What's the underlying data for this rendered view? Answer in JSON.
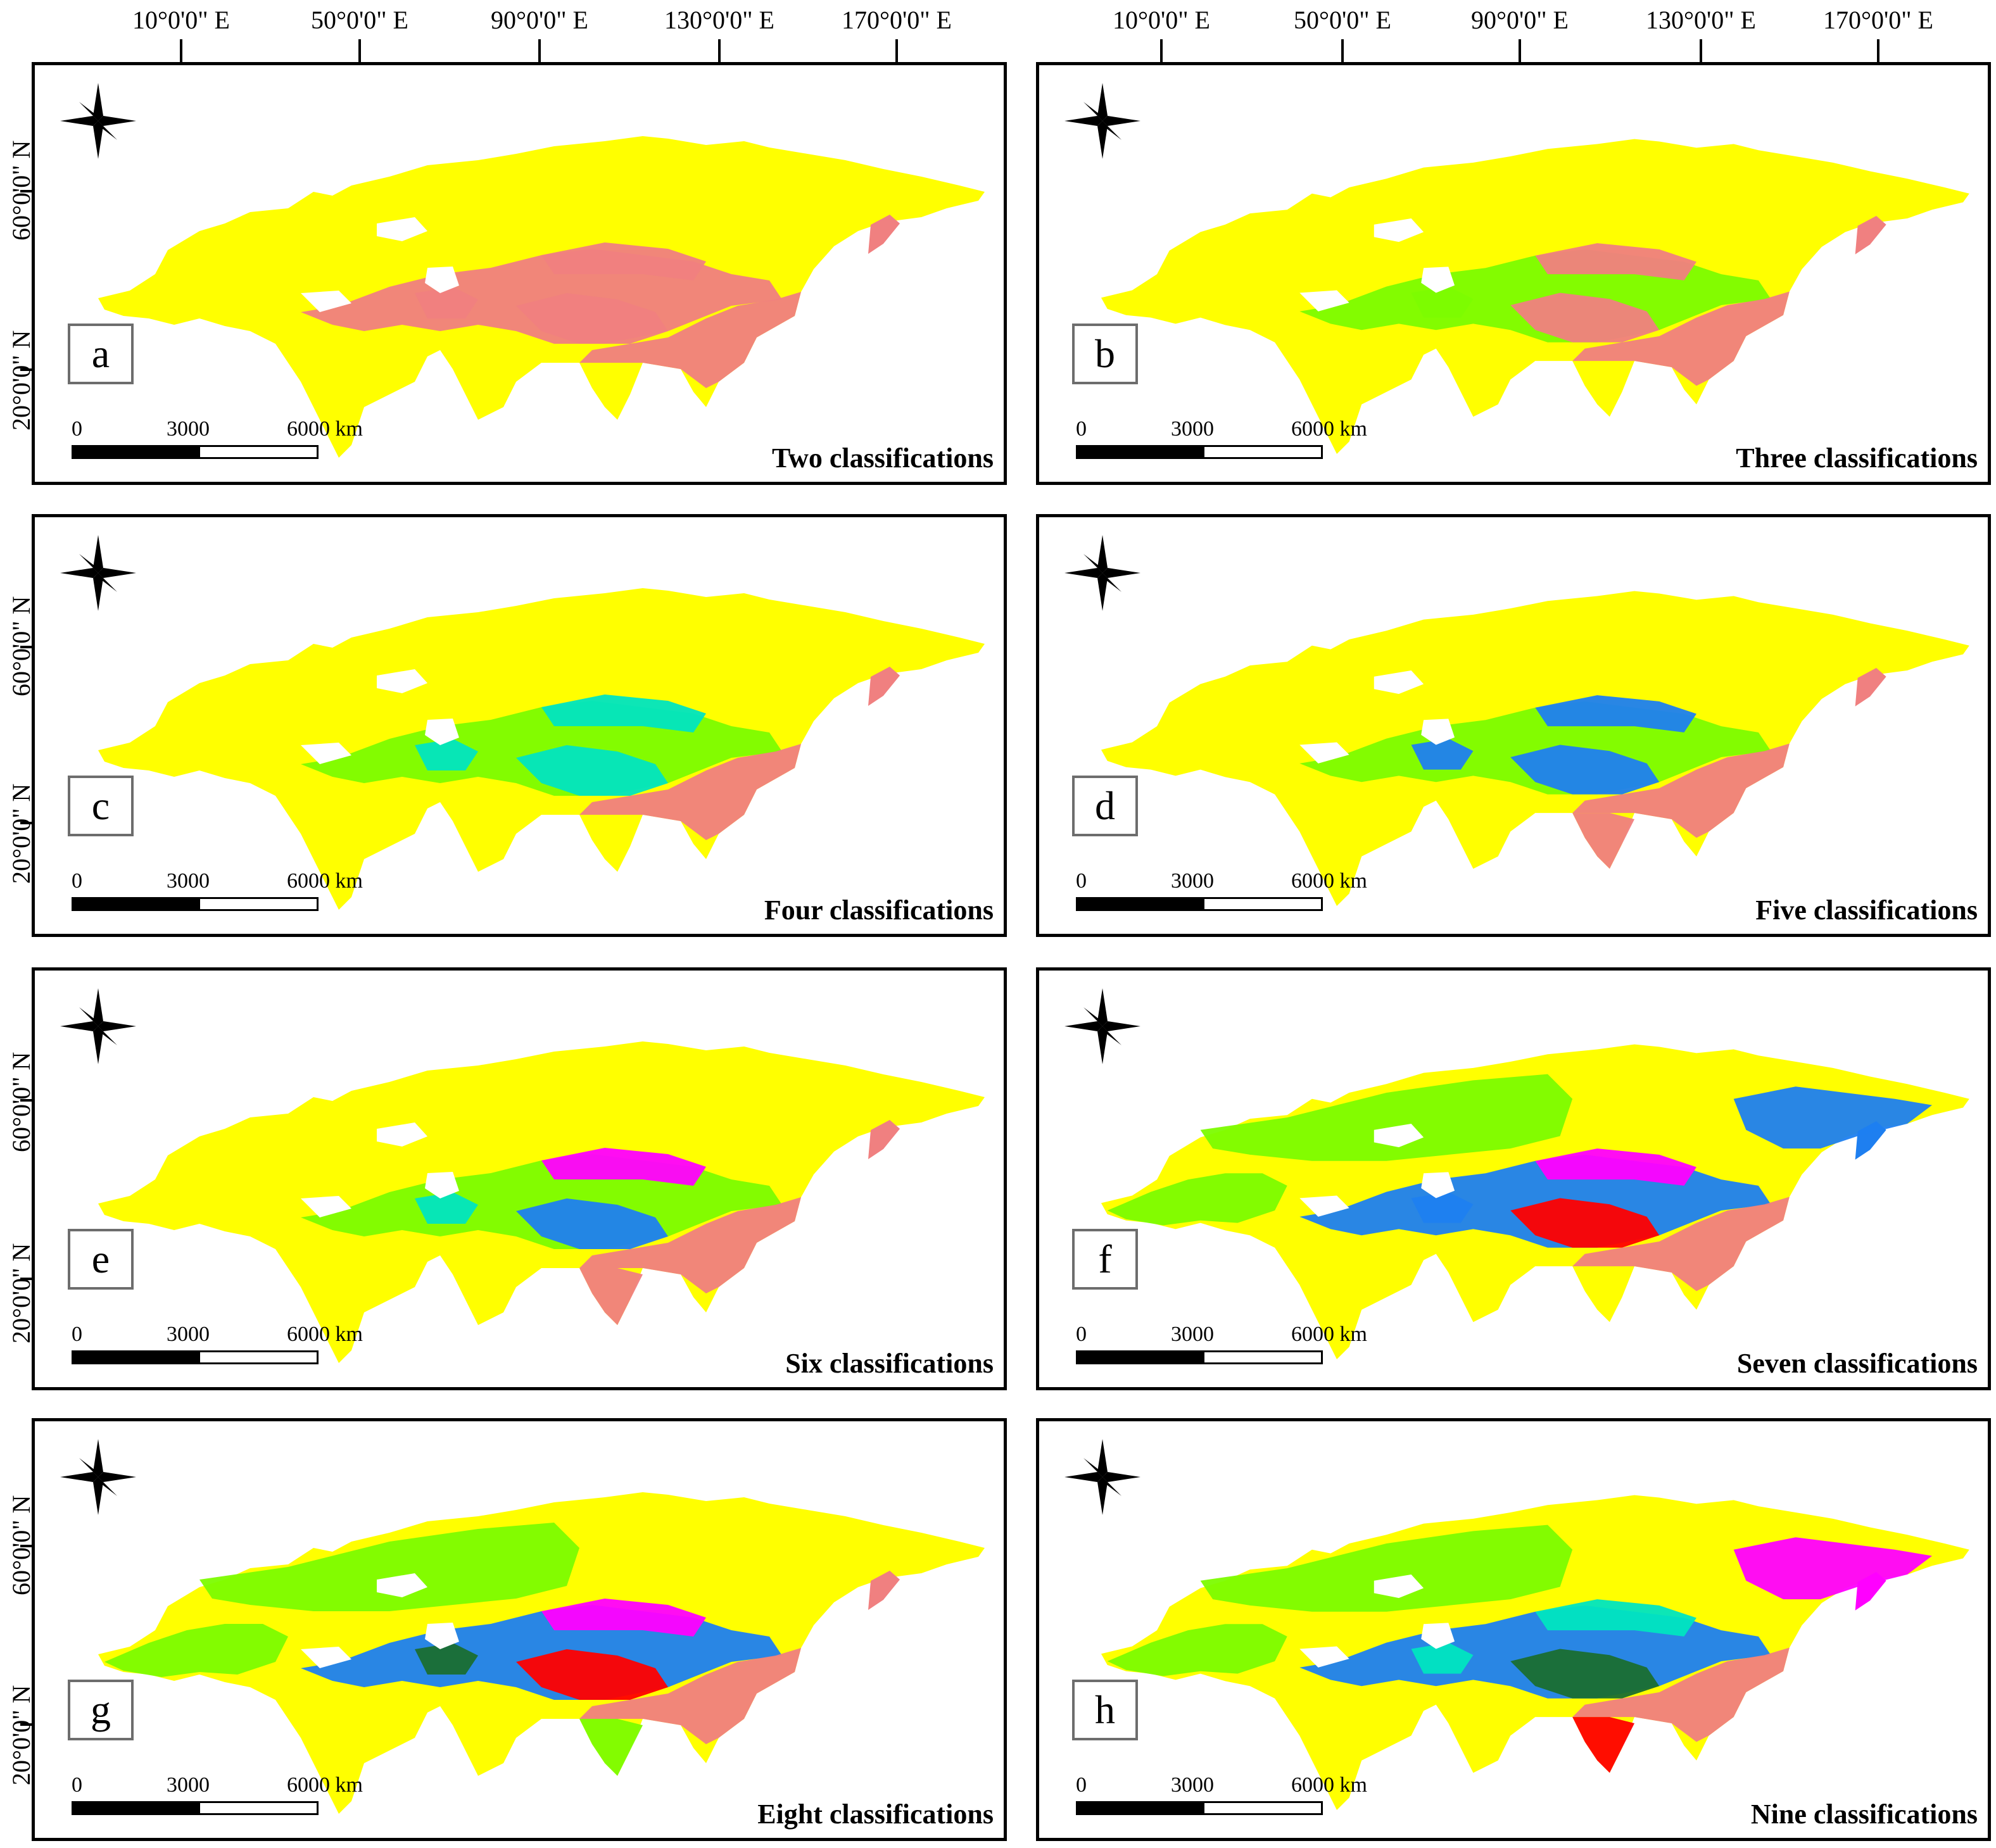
{
  "longitude_labels": [
    "10°0'0\" E",
    "50°0'0\" E",
    "90°0'0\" E",
    "130°0'0\" E",
    "170°0'0\" E"
  ],
  "latitude_labels": [
    "60°0'0\" N",
    "20°0'0\" N"
  ],
  "scale_labels": {
    "zero": "0",
    "mid": "3000",
    "end": "6000 km"
  },
  "colors": {
    "yellow": "#ffff00",
    "pink": "#f08080",
    "green": "#7cfc00",
    "cyan": "#00e5c0",
    "blue": "#1e7ff0",
    "magenta": "#ff00ff",
    "red": "#ff0000",
    "dark_green": "#1a6e30"
  },
  "panels": [
    {
      "letter": "a",
      "title": "Two classifications"
    },
    {
      "letter": "b",
      "title": "Three classifications"
    },
    {
      "letter": "c",
      "title": "Four classifications"
    },
    {
      "letter": "d",
      "title": "Five classifications"
    },
    {
      "letter": "e",
      "title": "Six classifications"
    },
    {
      "letter": "f",
      "title": "Seven classifications"
    },
    {
      "letter": "g",
      "title": "Eight classifications"
    },
    {
      "letter": "h",
      "title": "Nine classifications"
    }
  ]
}
